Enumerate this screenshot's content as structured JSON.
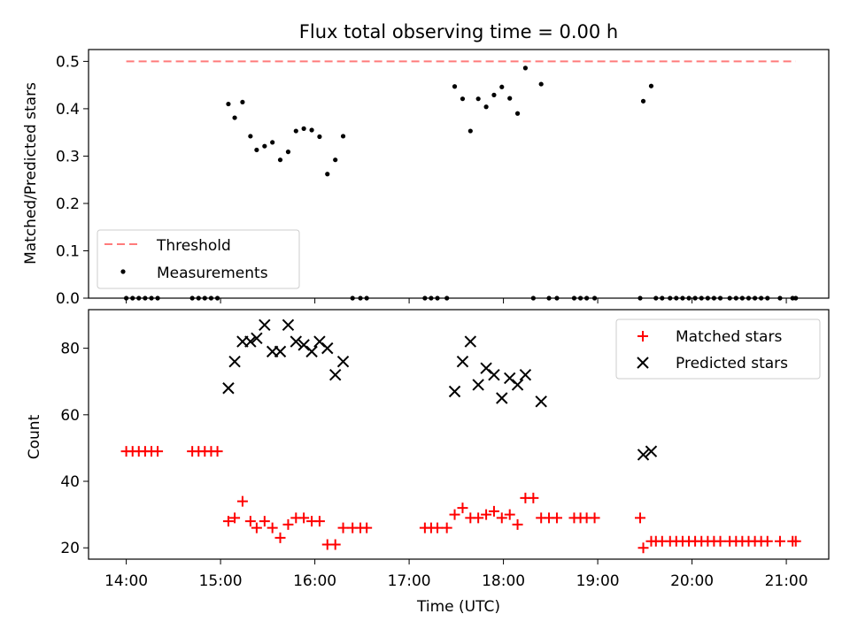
{
  "figure": {
    "title": "Flux total observing time = 0.00 h"
  },
  "chart_data": [
    {
      "type": "scatter",
      "title": "Flux total observing time = 0.00 h",
      "ylabel": "Matched/Predicted stars",
      "xlabel": "",
      "xlim": [
        13.6,
        21.45
      ],
      "ylim": [
        0,
        0.525
      ],
      "yticks": [
        "0.0",
        "0.1",
        "0.2",
        "0.3",
        "0.4",
        "0.5"
      ],
      "ytick_values": [
        0,
        0.1,
        0.2,
        0.3,
        0.4,
        0.5
      ],
      "xtick_values": [
        14,
        15,
        16,
        17,
        18,
        19,
        20,
        21
      ],
      "legend_position": "bottom-left",
      "threshold": {
        "name": "Threshold",
        "color": "#ff7b7b",
        "style": "dashed",
        "x": [
          14.0,
          21.1
        ],
        "y": 0.5
      },
      "series": [
        {
          "name": "Measurements",
          "color": "#000000",
          "marker": "dot",
          "points": [
            [
              14.0,
              0
            ],
            [
              14.067,
              0
            ],
            [
              14.133,
              0
            ],
            [
              14.2,
              0
            ],
            [
              14.267,
              0
            ],
            [
              14.333,
              0
            ],
            [
              14.7,
              0
            ],
            [
              14.767,
              0
            ],
            [
              14.833,
              0
            ],
            [
              14.9,
              0
            ],
            [
              14.967,
              0
            ],
            [
              15.083,
              0.41
            ],
            [
              15.15,
              0.381
            ],
            [
              15.233,
              0.414
            ],
            [
              15.317,
              0.342
            ],
            [
              15.383,
              0.313
            ],
            [
              15.467,
              0.321
            ],
            [
              15.55,
              0.329
            ],
            [
              15.633,
              0.292
            ],
            [
              15.717,
              0.309
            ],
            [
              15.8,
              0.353
            ],
            [
              15.883,
              0.358
            ],
            [
              15.967,
              0.355
            ],
            [
              16.05,
              0.341
            ],
            [
              16.133,
              0.262
            ],
            [
              16.217,
              0.292
            ],
            [
              16.3,
              0.342
            ],
            [
              16.4,
              0
            ],
            [
              16.483,
              0
            ],
            [
              16.55,
              0
            ],
            [
              17.167,
              0
            ],
            [
              17.233,
              0
            ],
            [
              17.3,
              0
            ],
            [
              17.4,
              0
            ],
            [
              17.483,
              0.447
            ],
            [
              17.567,
              0.421
            ],
            [
              17.65,
              0.353
            ],
            [
              17.733,
              0.421
            ],
            [
              17.817,
              0.404
            ],
            [
              17.9,
              0.429
            ],
            [
              17.983,
              0.446
            ],
            [
              18.067,
              0.422
            ],
            [
              18.15,
              0.39
            ],
            [
              18.233,
              0.486
            ],
            [
              18.317,
              0
            ],
            [
              18.4,
              0.452
            ],
            [
              18.483,
              0
            ],
            [
              18.567,
              0
            ],
            [
              18.75,
              0
            ],
            [
              18.817,
              0
            ],
            [
              18.883,
              0
            ],
            [
              18.967,
              0
            ],
            [
              19.45,
              0
            ],
            [
              19.483,
              0.416
            ],
            [
              19.567,
              0.448
            ],
            [
              19.617,
              0
            ],
            [
              19.683,
              0
            ],
            [
              19.767,
              0
            ],
            [
              19.833,
              0
            ],
            [
              19.9,
              0
            ],
            [
              19.967,
              0
            ],
            [
              20.033,
              0
            ],
            [
              20.1,
              0
            ],
            [
              20.167,
              0
            ],
            [
              20.233,
              0
            ],
            [
              20.3,
              0
            ],
            [
              20.4,
              0
            ],
            [
              20.467,
              0
            ],
            [
              20.533,
              0
            ],
            [
              20.6,
              0
            ],
            [
              20.667,
              0
            ],
            [
              20.733,
              0
            ],
            [
              20.8,
              0
            ],
            [
              20.933,
              0
            ],
            [
              21.067,
              0
            ],
            [
              21.1,
              0
            ]
          ]
        }
      ]
    },
    {
      "type": "scatter",
      "xlabel": "Time (UTC)",
      "ylabel": "Count",
      "xlim": [
        13.6,
        21.45
      ],
      "ylim": [
        16.6,
        91.6
      ],
      "yticks": [
        "20",
        "40",
        "60",
        "80"
      ],
      "ytick_values": [
        20,
        40,
        60,
        80
      ],
      "xticks": [
        "14:00",
        "15:00",
        "16:00",
        "17:00",
        "18:00",
        "19:00",
        "20:00",
        "21:00"
      ],
      "xtick_values": [
        14,
        15,
        16,
        17,
        18,
        19,
        20,
        21
      ],
      "legend_position": "top-right",
      "series": [
        {
          "name": "Matched stars",
          "color": "#ff0000",
          "marker": "plus",
          "points": [
            [
              14.0,
              49
            ],
            [
              14.067,
              49
            ],
            [
              14.133,
              49
            ],
            [
              14.2,
              49
            ],
            [
              14.267,
              49
            ],
            [
              14.333,
              49
            ],
            [
              14.7,
              49
            ],
            [
              14.767,
              49
            ],
            [
              14.833,
              49
            ],
            [
              14.9,
              49
            ],
            [
              14.967,
              49
            ],
            [
              15.083,
              28
            ],
            [
              15.15,
              29
            ],
            [
              15.233,
              34
            ],
            [
              15.317,
              28
            ],
            [
              15.383,
              26
            ],
            [
              15.467,
              28
            ],
            [
              15.55,
              26
            ],
            [
              15.633,
              23
            ],
            [
              15.717,
              27
            ],
            [
              15.8,
              29
            ],
            [
              15.883,
              29
            ],
            [
              15.967,
              28
            ],
            [
              16.05,
              28
            ],
            [
              16.133,
              21
            ],
            [
              16.217,
              21
            ],
            [
              16.3,
              26
            ],
            [
              16.4,
              26
            ],
            [
              16.483,
              26
            ],
            [
              16.55,
              26
            ],
            [
              17.167,
              26
            ],
            [
              17.233,
              26
            ],
            [
              17.3,
              26
            ],
            [
              17.4,
              26
            ],
            [
              17.483,
              30
            ],
            [
              17.567,
              32
            ],
            [
              17.65,
              29
            ],
            [
              17.733,
              29
            ],
            [
              17.817,
              30
            ],
            [
              17.9,
              31
            ],
            [
              17.983,
              29
            ],
            [
              18.067,
              30
            ],
            [
              18.15,
              27
            ],
            [
              18.233,
              35
            ],
            [
              18.317,
              35
            ],
            [
              18.4,
              29
            ],
            [
              18.483,
              29
            ],
            [
              18.567,
              29
            ],
            [
              18.75,
              29
            ],
            [
              18.817,
              29
            ],
            [
              18.883,
              29
            ],
            [
              18.967,
              29
            ],
            [
              19.45,
              29
            ],
            [
              19.483,
              20
            ],
            [
              19.567,
              22
            ],
            [
              19.617,
              22
            ],
            [
              19.683,
              22
            ],
            [
              19.767,
              22
            ],
            [
              19.833,
              22
            ],
            [
              19.9,
              22
            ],
            [
              19.967,
              22
            ],
            [
              20.033,
              22
            ],
            [
              20.1,
              22
            ],
            [
              20.167,
              22
            ],
            [
              20.233,
              22
            ],
            [
              20.3,
              22
            ],
            [
              20.4,
              22
            ],
            [
              20.467,
              22
            ],
            [
              20.533,
              22
            ],
            [
              20.6,
              22
            ],
            [
              20.667,
              22
            ],
            [
              20.733,
              22
            ],
            [
              20.8,
              22
            ],
            [
              20.933,
              22
            ],
            [
              21.067,
              22
            ],
            [
              21.1,
              22
            ]
          ]
        },
        {
          "name": "Predicted stars",
          "color": "#000000",
          "marker": "x",
          "points": [
            [
              15.083,
              68
            ],
            [
              15.15,
              76
            ],
            [
              15.233,
              82
            ],
            [
              15.317,
              82
            ],
            [
              15.383,
              83
            ],
            [
              15.467,
              87
            ],
            [
              15.55,
              79
            ],
            [
              15.633,
              79
            ],
            [
              15.717,
              87
            ],
            [
              15.8,
              82
            ],
            [
              15.883,
              81
            ],
            [
              15.967,
              79
            ],
            [
              16.05,
              82
            ],
            [
              16.133,
              80
            ],
            [
              16.217,
              72
            ],
            [
              16.3,
              76
            ],
            [
              17.483,
              67
            ],
            [
              17.567,
              76
            ],
            [
              17.65,
              82
            ],
            [
              17.733,
              69
            ],
            [
              17.817,
              74
            ],
            [
              17.9,
              72
            ],
            [
              17.983,
              65
            ],
            [
              18.067,
              71
            ],
            [
              18.15,
              69
            ],
            [
              18.233,
              72
            ],
            [
              18.4,
              64
            ],
            [
              19.483,
              48
            ],
            [
              19.567,
              49
            ]
          ]
        }
      ]
    }
  ]
}
